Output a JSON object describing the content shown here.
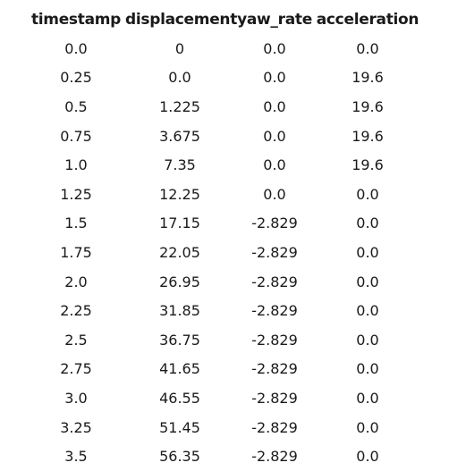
{
  "table": {
    "headers": [
      "timestamp",
      "displacement",
      "yaw_rate",
      "acceleration"
    ],
    "rows": [
      [
        "0.0",
        "0",
        "0.0",
        "0.0"
      ],
      [
        "0.25",
        "0.0",
        "0.0",
        "19.6"
      ],
      [
        "0.5",
        "1.225",
        "0.0",
        "19.6"
      ],
      [
        "0.75",
        "3.675",
        "0.0",
        "19.6"
      ],
      [
        "1.0",
        "7.35",
        "0.0",
        "19.6"
      ],
      [
        "1.25",
        "12.25",
        "0.0",
        "0.0"
      ],
      [
        "1.5",
        "17.15",
        "-2.829",
        "0.0"
      ],
      [
        "1.75",
        "22.05",
        "-2.829",
        "0.0"
      ],
      [
        "2.0",
        "26.95",
        "-2.829",
        "0.0"
      ],
      [
        "2.25",
        "31.85",
        "-2.829",
        "0.0"
      ],
      [
        "2.5",
        "36.75",
        "-2.829",
        "0.0"
      ],
      [
        "2.75",
        "41.65",
        "-2.829",
        "0.0"
      ],
      [
        "3.0",
        "46.55",
        "-2.829",
        "0.0"
      ],
      [
        "3.25",
        "51.45",
        "-2.829",
        "0.0"
      ],
      [
        "3.5",
        "56.35",
        "-2.829",
        "0.0"
      ]
    ]
  }
}
